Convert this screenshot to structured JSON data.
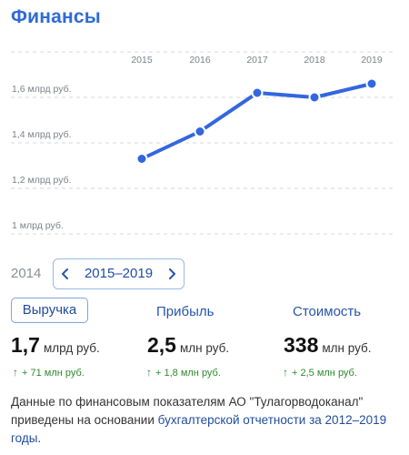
{
  "title": "Финансы",
  "range": {
    "prev_year": "2014",
    "label": "2015–2019"
  },
  "tabs": {
    "revenue": "Выручка",
    "profit": "Прибыль",
    "value": "Стоимость"
  },
  "metrics": {
    "revenue": {
      "num": "1,7",
      "unit": "млрд руб.",
      "delta": "+ 71 млн руб."
    },
    "profit": {
      "num": "2,5",
      "unit": "млн руб.",
      "delta": "+ 1,8 млн руб."
    },
    "value": {
      "num": "338",
      "unit": "млн руб.",
      "delta": "+ 2,5 млн руб."
    }
  },
  "note": {
    "text": "Данные по финансовым показателям АО \"Тулагорводоканал\" приведены на основании ",
    "link": "бухгалтерской отчетности за 2012–2019 годы",
    "tail": "."
  },
  "colors": {
    "accent": "#2e6bd6",
    "line": "#3366e0",
    "positive": "#2f8a2f"
  },
  "chart_data": {
    "type": "line",
    "x": [
      "2015",
      "2016",
      "2017",
      "2018",
      "2019"
    ],
    "series": [
      {
        "values": [
          1.33,
          1.45,
          1.62,
          1.6,
          1.66
        ]
      }
    ],
    "y_ticks": [
      {
        "value": 1.0,
        "label": "1 млрд руб."
      },
      {
        "value": 1.2,
        "label": "1,2 млрд руб."
      },
      {
        "value": 1.4,
        "label": "1,4 млрд руб."
      },
      {
        "value": 1.6,
        "label": "1,6 млрд руб."
      }
    ],
    "ylim": [
      1.0,
      1.8
    ],
    "grid": true
  }
}
